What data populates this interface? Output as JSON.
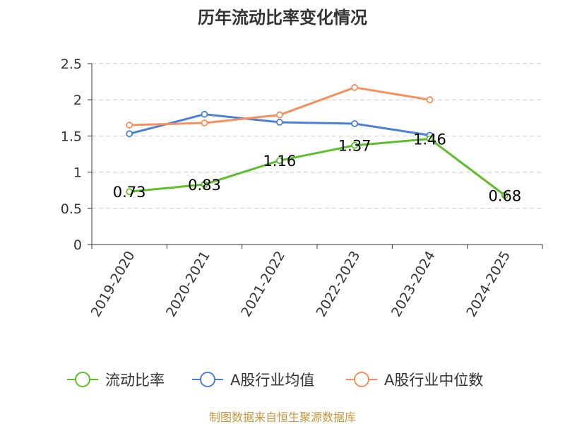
{
  "chart_data": {
    "type": "line",
    "title": "历年流动比率变化情况",
    "categories": [
      "2019-2020",
      "2020-2021",
      "2021-2022",
      "2022-2023",
      "2023-2024",
      "2024-2025"
    ],
    "ylim": [
      0,
      2.5
    ],
    "yticks": [
      "0",
      "0.5",
      "1",
      "1.5",
      "2",
      "2.5"
    ],
    "grid": true,
    "legend_position": "bottom",
    "series": [
      {
        "name": "流动比率",
        "color": "#5cbf2a",
        "values": [
          0.73,
          0.83,
          1.16,
          1.37,
          1.46,
          0.68
        ],
        "labels": [
          "0.73",
          "0.83",
          "1.16",
          "1.37",
          "1.46",
          "0.68"
        ]
      },
      {
        "name": "A股行业均值",
        "color": "#4a7fdc",
        "values": [
          1.53,
          1.8,
          1.69,
          1.67,
          1.51,
          null
        ]
      },
      {
        "name": "A股行业中位数",
        "color": "#f88e5a",
        "values": [
          1.65,
          1.68,
          1.79,
          2.17,
          2.0,
          null
        ]
      }
    ]
  },
  "source_note": "制图数据来自恒生聚源数据库"
}
